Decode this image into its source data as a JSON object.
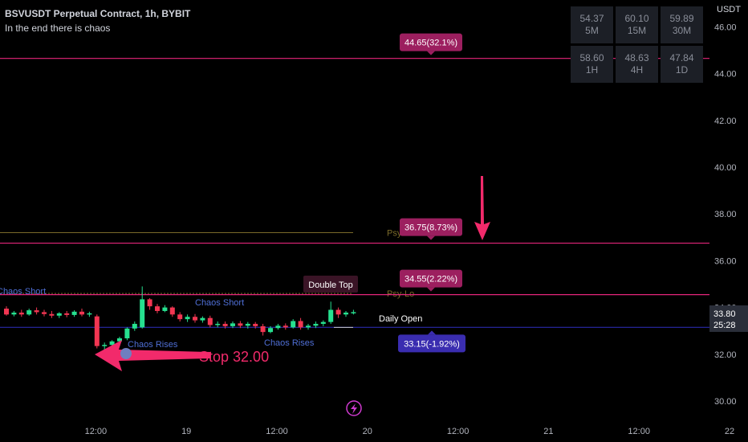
{
  "header": {
    "symbol": "BSVUSDT Perpetual Contract, 1h, BYBIT",
    "subtitle": "In the end there is chaos"
  },
  "rsi_table": [
    {
      "value": "54.37",
      "tf": "5M"
    },
    {
      "value": "60.10",
      "tf": "15M"
    },
    {
      "value": "59.89",
      "tf": "30M"
    },
    {
      "value": "58.60",
      "tf": "1H"
    },
    {
      "value": "48.63",
      "tf": "4H"
    },
    {
      "value": "47.84",
      "tf": "1D"
    }
  ],
  "price_unit": "USDT",
  "colors": {
    "bull": "#26e08f",
    "bear": "#f23652",
    "level_line": "#e4257a",
    "target_bg": "#9c1f5f",
    "daily_open_line": "#2a2aa8",
    "daily_open_bg": "#3a2db0",
    "arrow": "#f22a6b",
    "psy_line": "#7a6a2a",
    "axis_text": "#b2b5be"
  },
  "chart_data": {
    "type": "candlestick",
    "y_ticks": [
      "30.00",
      "32.00",
      "34.00",
      "36.00",
      "38.00",
      "40.00",
      "42.00",
      "44.00",
      "46.00"
    ],
    "ylim": [
      29.6,
      46.6
    ],
    "x_ticks": [
      {
        "label": "12:00",
        "t": 6
      },
      {
        "label": "19",
        "t": 18
      },
      {
        "label": "12:00",
        "t": 30
      },
      {
        "label": "20",
        "t": 42
      },
      {
        "label": "12:00",
        "t": 54
      },
      {
        "label": "21",
        "t": 66
      },
      {
        "label": "12:00",
        "t": 78
      },
      {
        "label": "22",
        "t": 90
      }
    ],
    "candles": [
      {
        "t": 0,
        "o": 33.95,
        "h": 34.05,
        "c": 33.7,
        "l": 33.65
      },
      {
        "t": 1,
        "o": 33.7,
        "h": 33.85,
        "c": 33.78,
        "l": 33.62
      },
      {
        "t": 2,
        "o": 33.78,
        "h": 33.9,
        "c": 33.7,
        "l": 33.6
      },
      {
        "t": 3,
        "o": 33.7,
        "h": 33.95,
        "c": 33.88,
        "l": 33.65
      },
      {
        "t": 4,
        "o": 33.88,
        "h": 34.0,
        "c": 33.8,
        "l": 33.7
      },
      {
        "t": 5,
        "o": 33.8,
        "h": 33.9,
        "c": 33.72,
        "l": 33.62
      },
      {
        "t": 6,
        "o": 33.72,
        "h": 33.85,
        "c": 33.65,
        "l": 33.55
      },
      {
        "t": 7,
        "o": 33.65,
        "h": 33.8,
        "c": 33.75,
        "l": 33.55
      },
      {
        "t": 8,
        "o": 33.75,
        "h": 33.85,
        "c": 33.68,
        "l": 33.58
      },
      {
        "t": 9,
        "o": 33.68,
        "h": 33.88,
        "c": 33.82,
        "l": 33.6
      },
      {
        "t": 10,
        "o": 33.82,
        "h": 33.95,
        "c": 33.7,
        "l": 33.62
      },
      {
        "t": 11,
        "o": 33.7,
        "h": 33.82,
        "c": 33.75,
        "l": 33.6
      },
      {
        "t": 12,
        "o": 33.62,
        "h": 33.7,
        "c": 32.35,
        "l": 32.25
      },
      {
        "t": 13,
        "o": 32.35,
        "h": 32.5,
        "c": 32.4,
        "l": 32.05
      },
      {
        "t": 14,
        "o": 32.4,
        "h": 32.6,
        "c": 32.55,
        "l": 32.3
      },
      {
        "t": 15,
        "o": 32.55,
        "h": 32.75,
        "c": 32.68,
        "l": 32.45
      },
      {
        "t": 16,
        "o": 32.68,
        "h": 33.15,
        "c": 33.1,
        "l": 32.6
      },
      {
        "t": 17,
        "o": 33.1,
        "h": 33.4,
        "c": 33.3,
        "l": 33.0
      },
      {
        "t": 18,
        "o": 33.15,
        "h": 34.9,
        "c": 34.35,
        "l": 33.1
      },
      {
        "t": 19,
        "o": 34.35,
        "h": 34.4,
        "c": 34.05,
        "l": 33.9
      },
      {
        "t": 20,
        "o": 34.05,
        "h": 34.15,
        "c": 33.85,
        "l": 33.75
      },
      {
        "t": 21,
        "o": 33.85,
        "h": 34.1,
        "c": 34.0,
        "l": 33.8
      },
      {
        "t": 22,
        "o": 34.0,
        "h": 34.05,
        "c": 33.7,
        "l": 33.6
      },
      {
        "t": 23,
        "o": 33.7,
        "h": 33.8,
        "c": 33.5,
        "l": 33.4
      },
      {
        "t": 24,
        "o": 33.5,
        "h": 33.7,
        "c": 33.6,
        "l": 33.38
      },
      {
        "t": 25,
        "o": 33.6,
        "h": 33.72,
        "c": 33.45,
        "l": 33.35
      },
      {
        "t": 26,
        "o": 33.45,
        "h": 33.62,
        "c": 33.55,
        "l": 33.35
      },
      {
        "t": 27,
        "o": 33.55,
        "h": 33.65,
        "c": 33.25,
        "l": 33.15
      },
      {
        "t": 28,
        "o": 33.25,
        "h": 33.4,
        "c": 33.3,
        "l": 33.15
      },
      {
        "t": 29,
        "o": 33.3,
        "h": 33.4,
        "c": 33.2,
        "l": 33.1
      },
      {
        "t": 30,
        "o": 33.2,
        "h": 33.4,
        "c": 33.32,
        "l": 33.12
      },
      {
        "t": 31,
        "o": 33.32,
        "h": 33.42,
        "c": 33.22,
        "l": 33.12
      },
      {
        "t": 32,
        "o": 33.22,
        "h": 33.38,
        "c": 33.3,
        "l": 33.1
      },
      {
        "t": 33,
        "o": 33.3,
        "h": 33.38,
        "c": 33.2,
        "l": 33.1
      },
      {
        "t": 34,
        "o": 33.2,
        "h": 33.3,
        "c": 32.95,
        "l": 32.8
      },
      {
        "t": 35,
        "o": 32.95,
        "h": 33.2,
        "c": 33.12,
        "l": 32.9
      },
      {
        "t": 36,
        "o": 33.12,
        "h": 33.3,
        "c": 33.22,
        "l": 33.05
      },
      {
        "t": 37,
        "o": 33.22,
        "h": 33.32,
        "c": 33.15,
        "l": 33.05
      },
      {
        "t": 38,
        "o": 33.15,
        "h": 33.5,
        "c": 33.42,
        "l": 33.1
      },
      {
        "t": 39,
        "o": 33.42,
        "h": 33.55,
        "c": 33.15,
        "l": 33.05
      },
      {
        "t": 40,
        "o": 33.15,
        "h": 33.3,
        "c": 33.22,
        "l": 33.05
      },
      {
        "t": 41,
        "o": 33.22,
        "h": 33.4,
        "c": 33.3,
        "l": 33.12
      },
      {
        "t": 42,
        "o": 33.3,
        "h": 33.45,
        "c": 33.38,
        "l": 33.2
      },
      {
        "t": 43,
        "o": 33.38,
        "h": 34.25,
        "c": 33.9,
        "l": 33.3
      },
      {
        "t": 44,
        "o": 33.9,
        "h": 34.0,
        "c": 33.7,
        "l": 33.55
      },
      {
        "t": 45,
        "o": 33.7,
        "h": 33.85,
        "c": 33.78,
        "l": 33.6
      },
      {
        "t": 46,
        "o": 33.78,
        "h": 33.9,
        "c": 33.8,
        "l": 33.7
      }
    ],
    "levels": [
      {
        "price": 44.65,
        "label": "44.65(32.1%)",
        "kind": "target"
      },
      {
        "price": 36.75,
        "label": "36.75(8.73%)",
        "kind": "target"
      },
      {
        "price": 34.55,
        "label": "34.55(2.22%)",
        "kind": "target"
      },
      {
        "price": 33.15,
        "label": "33.15(-1.92%)",
        "kind": "daily_open"
      }
    ],
    "psy_levels": [
      {
        "price": 37.2,
        "label": "Psy-Hi"
      },
      {
        "price": 34.6,
        "label": "Psy-Lo"
      }
    ],
    "annotations": {
      "chaos_short_left": "Chaos Short",
      "chaos_short_mid": "Chaos Short",
      "chaos_rises_1": "Chaos Rises",
      "chaos_rises_2": "Chaos Rises",
      "double_top": "Double Top",
      "daily_open": "Daily Open",
      "stop": "Stop 32.00"
    },
    "last_price": "33.80",
    "countdown": "25:28"
  }
}
